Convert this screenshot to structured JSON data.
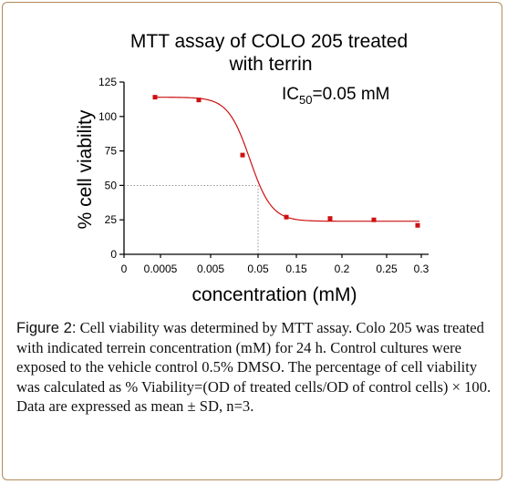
{
  "chart_data": {
    "type": "scatter",
    "title_lines": [
      "MTT assay of COLO 205 treated",
      "with terrin"
    ],
    "xlabel": "concentration (mM)",
    "ylabel": "% cell viability",
    "annotation": {
      "prefix": "IC",
      "sub": "50",
      "suffix": "=0.05 mM"
    },
    "x_tick_labels": [
      "0",
      "0.0005",
      "0.005",
      "0.05",
      "0.15",
      "0.2",
      "0.25",
      "0.3"
    ],
    "y_ticks": [
      0,
      25,
      50,
      75,
      100,
      125
    ],
    "ylim": [
      0,
      125
    ],
    "points": [
      {
        "x": "0.0005",
        "y": 114
      },
      {
        "x": "0.005",
        "y": 112
      },
      {
        "x": "0.05",
        "y": 72
      },
      {
        "x": "0.15",
        "y": 27
      },
      {
        "x": "0.2",
        "y": 26
      },
      {
        "x": "0.25",
        "y": 25
      },
      {
        "x": "0.3",
        "y": 21
      }
    ],
    "fit": {
      "top": 114,
      "bottom": 24,
      "ic50": "0.05 mM"
    },
    "marker_color": "#cc1111",
    "line_color": "#cc1111",
    "grid": false
  },
  "caption": {
    "lead": "Figure 2:",
    "text": " Cell viability was determined by MTT assay. Colo 205 was treated with indicated terrein concentration (mM) for 24 h. Control cultures were exposed to the vehicle control 0.5% DMSO. The percentage of cell viability was calculated as % Viability=(OD of treated cells/OD of control cells) × 100. Data are expressed as mean ± SD, n=3."
  }
}
